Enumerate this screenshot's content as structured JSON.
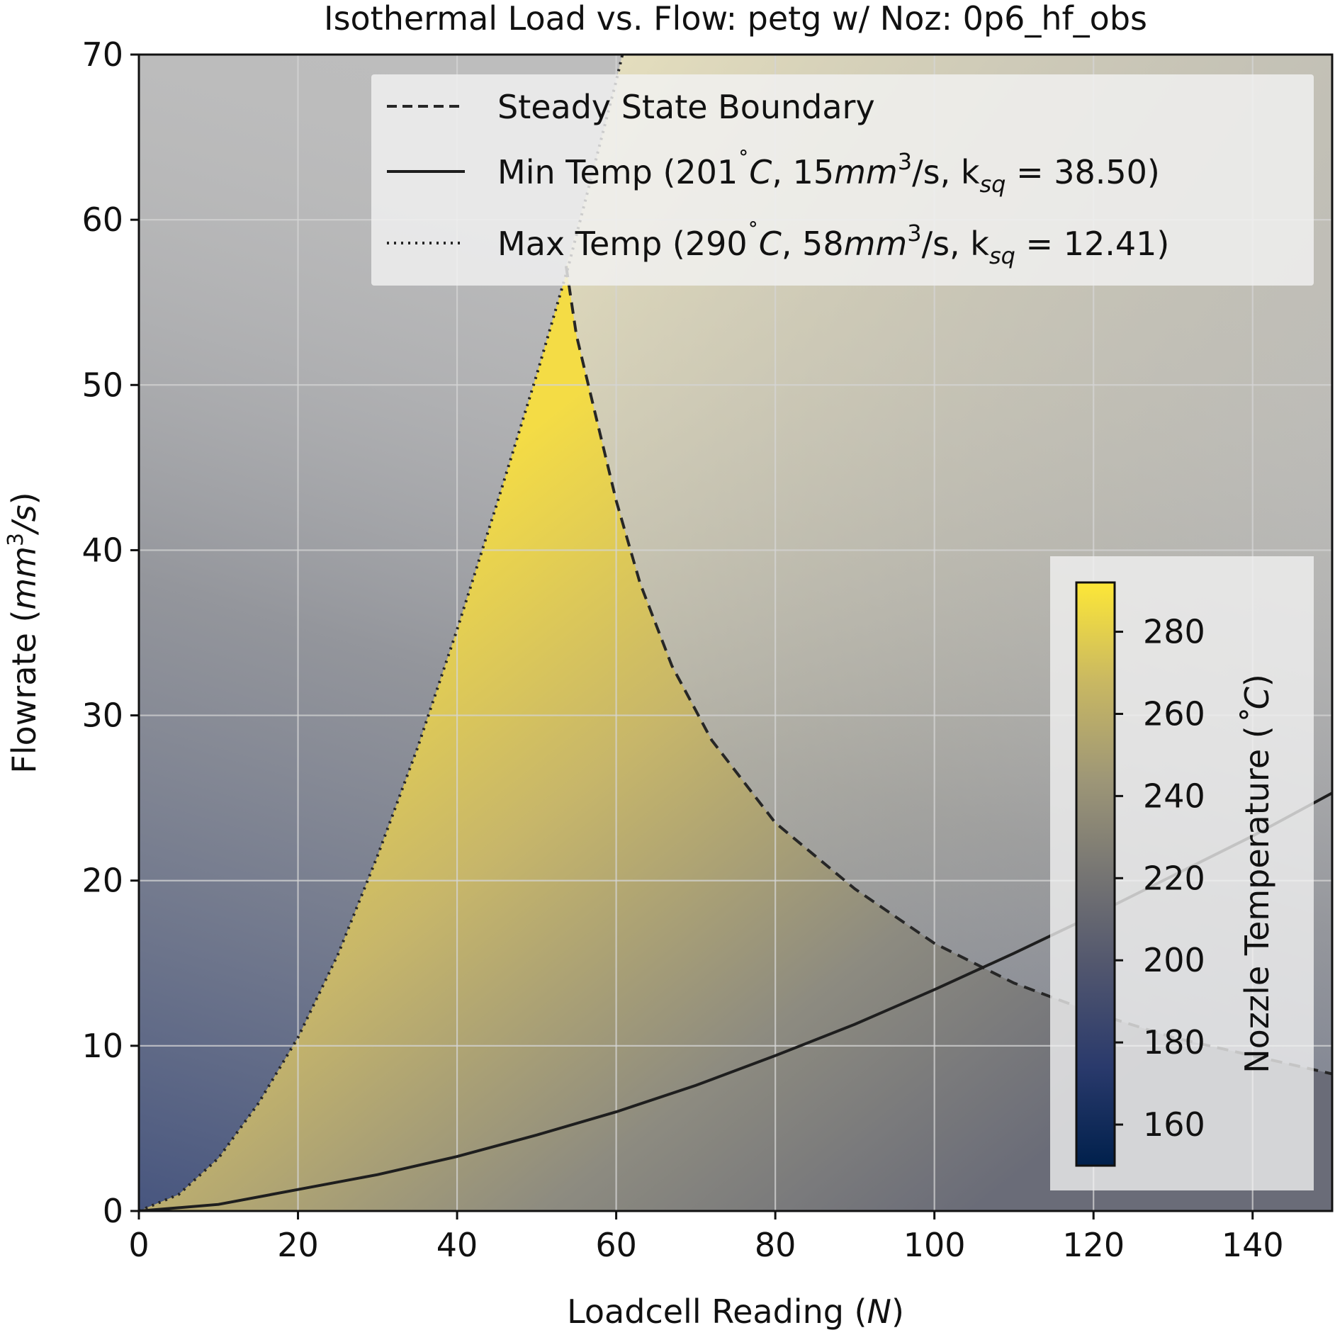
{
  "chart_data": {
    "type": "line",
    "title": "Isothermal Load vs. Flow: petg w/ Noz: 0p6_hf_obs",
    "xlabel": {
      "text": "Loadcell Reading (",
      "var": "N",
      "close": ")"
    },
    "ylabel": {
      "text": "Flowrate (",
      "var": "mm",
      "sup": "3",
      "rest": "/s",
      "close": ")"
    },
    "xlim": [
      0,
      150
    ],
    "ylim": [
      0,
      70
    ],
    "x_ticks": [
      "0",
      "20",
      "40",
      "60",
      "80",
      "100",
      "120",
      "140"
    ],
    "y_ticks": [
      "0",
      "10",
      "20",
      "30",
      "40",
      "50",
      "60",
      "70"
    ],
    "grid": true,
    "legend_position": "top-right",
    "series": [
      {
        "name": "Steady State Boundary",
        "style": "dashed",
        "color": "#262626",
        "x": [
          53.7,
          55,
          58,
          60,
          63,
          67,
          72,
          80,
          90,
          100,
          110,
          120,
          130,
          140,
          150
        ],
        "y": [
          57.2,
          53.0,
          47.0,
          43.0,
          38.0,
          33.0,
          28.5,
          23.5,
          19.5,
          16.2,
          13.8,
          12.0,
          10.5,
          9.4,
          8.3
        ]
      },
      {
        "name": "Min Temp (201˚C, 15mm³/s, k_sq = 38.50)",
        "legend": {
          "a": "Min Temp (201",
          "b": "˚",
          "c": "C",
          "d": ", 15",
          "e": "mm",
          "f": "3",
          "g": "/s, k",
          "h": "sq",
          "i": " = 38.50)"
        },
        "style": "solid",
        "color": "#1e1e1e",
        "x": [
          0,
          10,
          20,
          30,
          40,
          50,
          60,
          70,
          80,
          90,
          100,
          110,
          120,
          130,
          140,
          150
        ],
        "y": [
          0,
          0.4,
          1.3,
          2.2,
          3.3,
          4.6,
          6.0,
          7.6,
          9.4,
          11.3,
          13.4,
          15.6,
          17.9,
          20.3,
          22.7,
          25.3
        ]
      },
      {
        "name": "Max Temp (290˚C, 58mm³/s, k_sq = 12.41)",
        "legend": {
          "a": "Max Temp (290",
          "b": "˚",
          "c": "C",
          "d": ", 58",
          "e": "mm",
          "f": "3",
          "g": "/s, k",
          "h": "sq",
          "i": " = 12.41)"
        },
        "style": "dotted",
        "color": "#262626",
        "x": [
          0,
          5,
          10,
          15,
          20,
          25,
          30,
          35,
          40,
          45,
          50,
          54,
          57,
          60,
          62
        ],
        "y": [
          0,
          1.0,
          3.2,
          6.5,
          10.5,
          15.5,
          21.5,
          28.0,
          35.2,
          42.8,
          50.6,
          57.2,
          62.8,
          68.4,
          72.5
        ]
      }
    ],
    "colorbar": {
      "label": "Nozzle Temperature (",
      "label_var": "˚C",
      "label_close": ")",
      "colormap": "cividis",
      "range": [
        150,
        292
      ],
      "ticks": [
        "160",
        "180",
        "200",
        "220",
        "240",
        "260",
        "280"
      ],
      "tick_values": [
        160,
        180,
        200,
        220,
        240,
        260,
        280
      ]
    },
    "colors": {
      "background": "#bdbdbd",
      "cividis_low": "#00204c",
      "cividis_mid": "#7c7b78",
      "cividis_high": "#fde737"
    }
  }
}
